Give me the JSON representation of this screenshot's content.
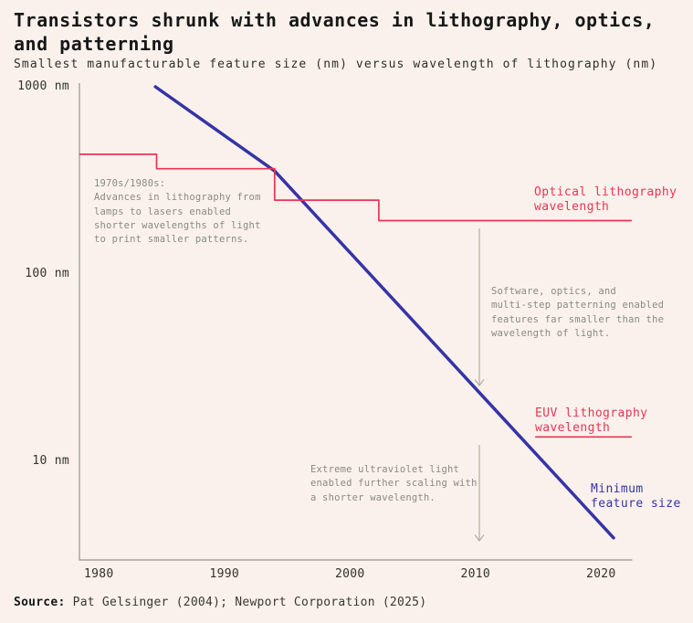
{
  "header": {
    "title": "Transistors shrunk with advances in lithography, optics, and patterning",
    "subtitle": "Smallest manufacturable feature size (nm) versus wavelength of lithography (nm)"
  },
  "chart_data": {
    "type": "line",
    "y_scale": "log",
    "grid": false,
    "xlim": [
      1978.5,
      2022.5
    ],
    "ylim": [
      3,
      1050
    ],
    "xticks": [
      {
        "label": "1980",
        "value": 1980
      },
      {
        "label": "1990",
        "value": 1990
      },
      {
        "label": "2000",
        "value": 2000
      },
      {
        "label": "2010",
        "value": 2010
      },
      {
        "label": "2020",
        "value": 2020
      }
    ],
    "yticks": [
      {
        "label": "1000 nm",
        "value": 1000
      },
      {
        "label": "100 nm",
        "value": 100
      },
      {
        "label": "10 nm",
        "value": 10
      }
    ],
    "series": [
      {
        "name": "Minimum feature size",
        "color": "#3534a6",
        "points": [
          [
            1984.5,
            1000
          ],
          [
            1994,
            355
          ],
          [
            2021,
            3.9
          ]
        ]
      },
      {
        "name": "Optical lithography wavelength",
        "color": "#e93455",
        "points": [
          [
            1978.5,
            436
          ],
          [
            1984.6,
            436
          ],
          [
            1984.6,
            365
          ],
          [
            1994,
            365
          ],
          [
            1994,
            248
          ],
          [
            2002.3,
            248
          ],
          [
            2002.3,
            193
          ],
          [
            2022.4,
            193
          ]
        ]
      },
      {
        "name": "EUV lithography wavelength",
        "color": "#e93455",
        "points": [
          [
            2014.8,
            13.5
          ],
          [
            2022.4,
            13.5
          ]
        ]
      }
    ],
    "palette": {
      "background": "#faf1ec",
      "axis": "#96938c",
      "annotation_gray": "#8b8982",
      "arrow_gray": "#b3aea4"
    }
  },
  "labels": {
    "optical": "Optical lithography\nwavelength",
    "euv": "EUV lithography\nwavelength",
    "min_feature": "Minimum\nfeature size"
  },
  "annotations": {
    "lithography_advances": "1970s/1980s:\nAdvances in lithography from\nlamps to lasers enabled\nshorter wavelengths of light\nto print smaller patterns.",
    "multi_step_patterning": "Software, optics, and\nmulti-step patterning enabled\nfeatures far smaller than the\nwavelength of light.",
    "euv_scaling": "Extreme ultraviolet light\nenabled further scaling with\na shorter wavelength."
  },
  "source": {
    "prefix": "Source:",
    "text": " Pat Gelsinger (2004); Newport Corporation (2025)"
  }
}
